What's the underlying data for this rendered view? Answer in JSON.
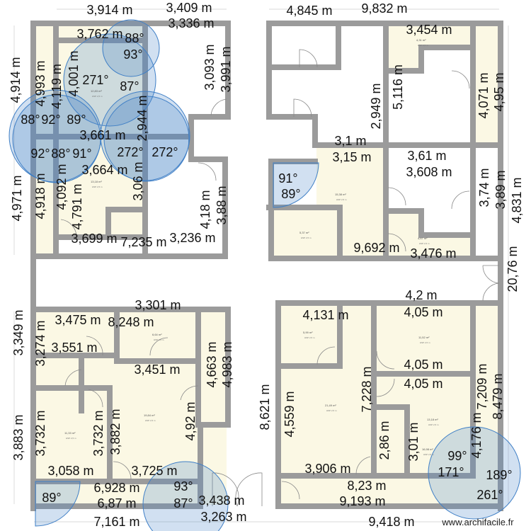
{
  "app": {
    "watermark": "www.archifacile.fr"
  },
  "colors": {
    "wall": "#9b9b9b",
    "room_fill": "#fbf8e4",
    "angle_marker": "#3f7fc6"
  },
  "rooms": [
    {
      "area": "12,83 m²",
      "hsp": "HSP 2,5 m"
    },
    {
      "area": "13,18 m²",
      "hsp": "HSP 2,5 m"
    },
    {
      "area": "4,31 m²",
      "hsp": "HSP 2,5 m"
    },
    {
      "area": "15,38 m²",
      "hsp": "HSP 2,5 m"
    },
    {
      "area": "5,37 m²",
      "hsp": "HSP 2,5 m"
    },
    {
      "area": "4,67 m²",
      "hsp": "HSP 2,5 m"
    },
    {
      "area": "6,64 m²",
      "hsp": "HSP 2,5 m"
    },
    {
      "area": "19,84 m²",
      "hsp": "HSP 2,5 m"
    },
    {
      "area": "11,33 m²",
      "hsp": "HSP 2,5 m"
    },
    {
      "area": "5,99 m²",
      "hsp": "HSP 2,5 m"
    },
    {
      "area": "11,52 m²",
      "hsp": "HSP 2,5 m"
    },
    {
      "area": "21,49 m²",
      "hsp": "HSP 2,5 m"
    },
    {
      "area": "13,18 m²",
      "hsp": "HSP 2,5 m"
    },
    {
      "area": "16,98 m²",
      "hsp": "HSP 2,5 m"
    }
  ],
  "dims": [
    "3,914 m",
    "3,409 m",
    "3,336 m",
    "4,845 m",
    "9,832 m",
    "3,762 m",
    "3,454 m",
    "4,914 m",
    "4,993 m",
    "4,119 m",
    "4,001 m",
    "3,661 m",
    "3,664 m",
    "2,944 m",
    "4,092 m",
    "4,971 m",
    "4,918 m",
    "4,791 m",
    "3,06 m",
    "3,699 m",
    "7,235 m",
    "3,236 m",
    "4,18 m",
    "3,88 m",
    "3,093 m",
    "3,991 m",
    "2,949 m",
    "5,116 m",
    "4,071 m",
    "4,95 m",
    "3,15 m",
    "3,1 m",
    "3,61 m",
    "3,608 m",
    "3,74 m",
    "3,89 m",
    "4,831 m",
    "20,76 m",
    "9,692 m",
    "3,476 m",
    "3,475 m",
    "8,248 m",
    "3,301 m",
    "3,551 m",
    "3,274 m",
    "3,349 m",
    "3,451 m",
    "4,663 m",
    "4,983 m",
    "3,883 m",
    "3,732 m",
    "3,732 m",
    "3,882 m",
    "4,92 m",
    "3,058 m",
    "3,725 m",
    "6,928 m",
    "6,87 m",
    "7,161 m",
    "3,263 m",
    "3,438 m",
    "8,621 m",
    "4,131 m",
    "4,05 m",
    "4,2 m",
    "4,05 m",
    "4,05 m",
    "7,228 m",
    "4,559 m",
    "2,86 m",
    "3,01 m",
    "4,176 m",
    "7,209 m",
    "8,479 m",
    "3,906 m",
    "8,23 m",
    "9,193 m",
    "9,418 m"
  ],
  "angles": [
    "88°",
    "93°",
    "271°",
    "87°",
    "89°",
    "92°",
    "88°",
    "88°",
    "91°",
    "92°",
    "272°",
    "272°",
    "91°",
    "89°",
    "89°",
    "93°",
    "87°",
    "99°",
    "171°",
    "189°",
    "261°"
  ]
}
